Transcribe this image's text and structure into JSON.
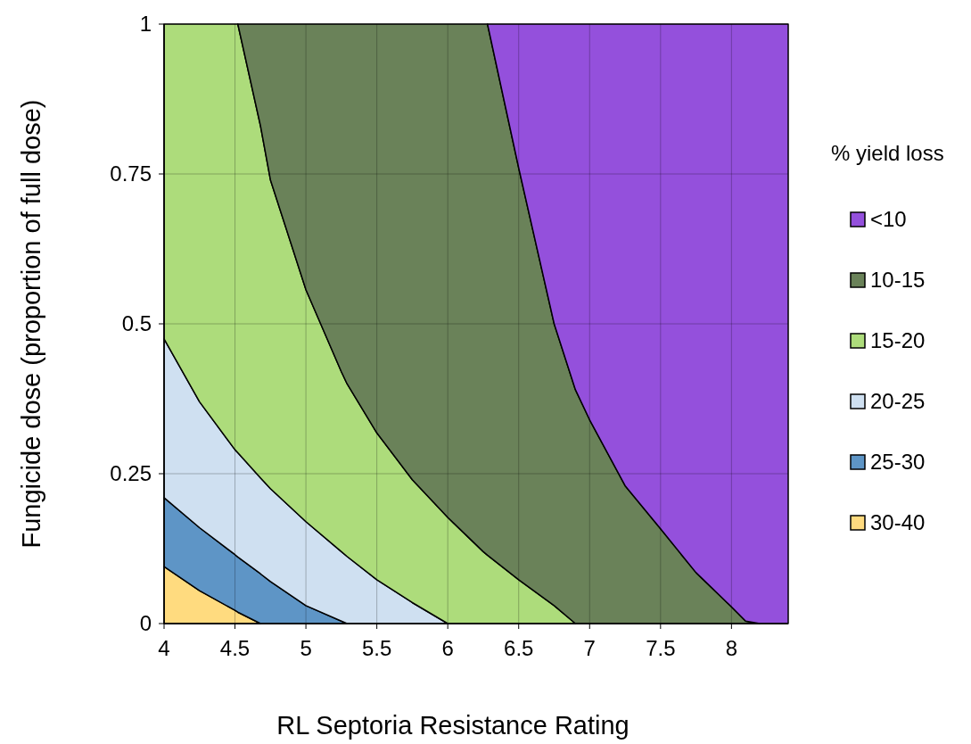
{
  "chart_data": {
    "type": "area",
    "stacked": true,
    "xlabel": "RL Septoria Resistance Rating",
    "ylabel": "Fungicide dose (proportion of full dose)",
    "legend_title": "% yield loss",
    "legend": "right",
    "grid": true,
    "xlim": [
      4,
      8.4
    ],
    "ylim": [
      0,
      1
    ],
    "xticks": [
      4,
      4.5,
      5,
      5.5,
      6,
      6.5,
      7,
      7.5,
      8
    ],
    "yticks": [
      0,
      0.25,
      0.5,
      0.75,
      1
    ],
    "x": [
      4,
      4.25,
      4.5,
      4.52,
      4.68,
      4.75,
      5,
      5.25,
      5.29,
      5.5,
      5.75,
      6,
      6.25,
      6.28,
      6.5,
      6.75,
      6.9,
      7,
      7.25,
      7.5,
      7.75,
      8,
      8.1,
      8.2,
      8.4
    ],
    "series": [
      {
        "name": "30-40",
        "color": "#ffdb7f",
        "values": [
          0.095,
          0.055,
          0.022,
          0.019,
          0,
          null,
          null,
          null,
          null,
          null,
          null,
          null,
          null,
          null,
          null,
          null,
          null,
          null,
          null,
          null,
          null,
          null,
          null,
          null,
          null
        ]
      },
      {
        "name": "25-30",
        "color": "#5e95c6",
        "values": [
          0.115,
          0.105,
          0.093,
          0.092,
          0.083,
          0.07,
          0.03,
          0.004,
          0,
          null,
          null,
          null,
          null,
          null,
          null,
          null,
          null,
          null,
          null,
          null,
          null,
          null,
          null,
          null,
          null
        ]
      },
      {
        "name": "20-25",
        "color": "#cfe0f1",
        "values": [
          0.265,
          0.21,
          0.175,
          0.174,
          0.16,
          0.155,
          0.14,
          0.116,
          0.112,
          0.073,
          0.035,
          0,
          null,
          null,
          null,
          null,
          null,
          null,
          null,
          null,
          null,
          null,
          null,
          null,
          null
        ]
      },
      {
        "name": "15-20",
        "color": "#addc7b",
        "values": [
          0.525,
          0.63,
          0.71,
          0.715,
          0.587,
          0.515,
          0.387,
          0.3,
          0.288,
          0.245,
          0.205,
          0.177,
          0.12,
          0.114,
          0.073,
          0.03,
          0,
          null,
          null,
          null,
          null,
          null,
          null,
          null,
          null
        ]
      },
      {
        "name": "10-15",
        "color": "#6a8259",
        "values": [
          null,
          null,
          null,
          0,
          0.17,
          0.26,
          0.443,
          0.58,
          0.6,
          0.682,
          0.76,
          0.823,
          0.88,
          0.886,
          0.687,
          0.47,
          0.39,
          0.34,
          0.23,
          0.158,
          0.085,
          0.028,
          0.004,
          0,
          null
        ]
      },
      {
        "name": "<10",
        "color": "#9450dc",
        "values": [
          null,
          null,
          null,
          null,
          null,
          null,
          null,
          null,
          null,
          null,
          null,
          null,
          null,
          0,
          0.24,
          0.5,
          0.61,
          0.66,
          0.77,
          0.842,
          0.915,
          0.972,
          0.996,
          1,
          1
        ]
      }
    ]
  }
}
